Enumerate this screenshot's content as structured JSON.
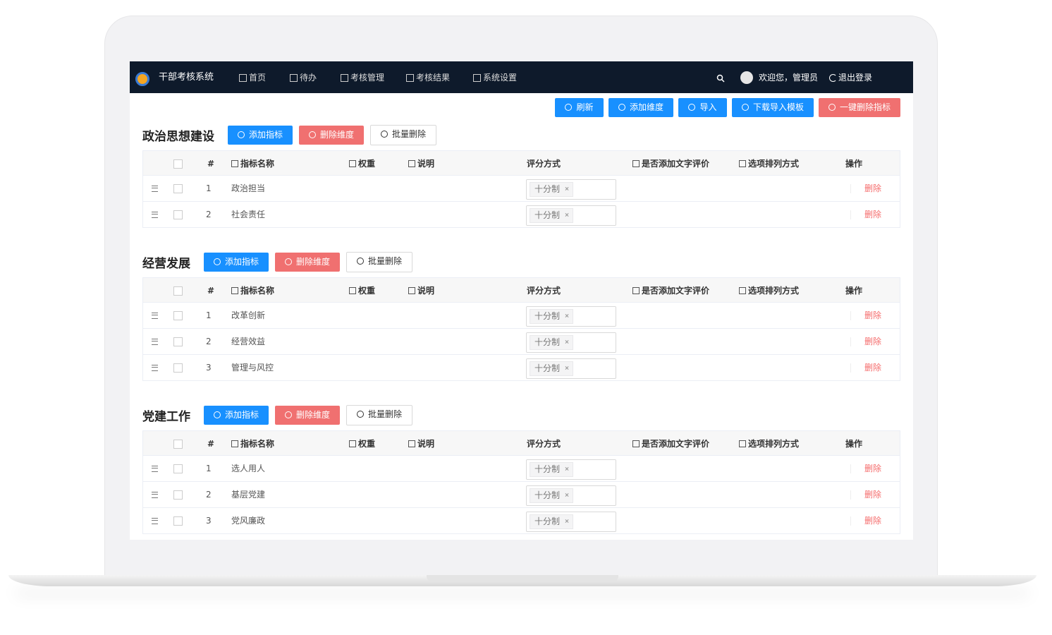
{
  "nav": {
    "brand": "干部考核系统",
    "items": [
      "首页",
      "待办",
      "考核管理",
      "考核结果",
      "系统设置"
    ],
    "user": "欢迎您，管理员",
    "logout": "退出登录"
  },
  "toolbar": [
    "刷新",
    "添加维度",
    "导入",
    "下载导入模板",
    "一键删除指标"
  ],
  "columns": [
    "#",
    "指标名称",
    "权重",
    "说明",
    "评分方式",
    "是否添加文字评价",
    "选项排列方式",
    "操作"
  ],
  "sections": [
    {
      "title": "政治思想建设",
      "buttons": [
        "添加指标",
        "删除维度",
        "批量删除"
      ],
      "rows": [
        {
          "index": 1,
          "name": "政治担当",
          "scoring": "十分制",
          "action": "删除"
        },
        {
          "index": 2,
          "name": "社会责任",
          "scoring": "十分制",
          "action": "删除"
        }
      ]
    },
    {
      "title": "经营发展",
      "buttons": [
        "添加指标",
        "删除维度",
        "批量删除"
      ],
      "rows": [
        {
          "index": 1,
          "name": "改革创新",
          "scoring": "十分制",
          "action": "删除"
        },
        {
          "index": 2,
          "name": "经营效益",
          "scoring": "十分制",
          "action": "删除"
        },
        {
          "index": 3,
          "name": "管理与风控",
          "scoring": "十分制",
          "action": "删除"
        }
      ]
    },
    {
      "title": "党建工作",
      "buttons": [
        "添加指标",
        "删除维度",
        "批量删除"
      ],
      "rows": [
        {
          "index": 1,
          "name": "选人用人",
          "scoring": "十分制",
          "action": "删除"
        },
        {
          "index": 2,
          "name": "基层党建",
          "scoring": "十分制",
          "action": "删除"
        },
        {
          "index": 3,
          "name": "党风廉政",
          "scoring": "十分制",
          "action": "删除"
        }
      ]
    }
  ]
}
